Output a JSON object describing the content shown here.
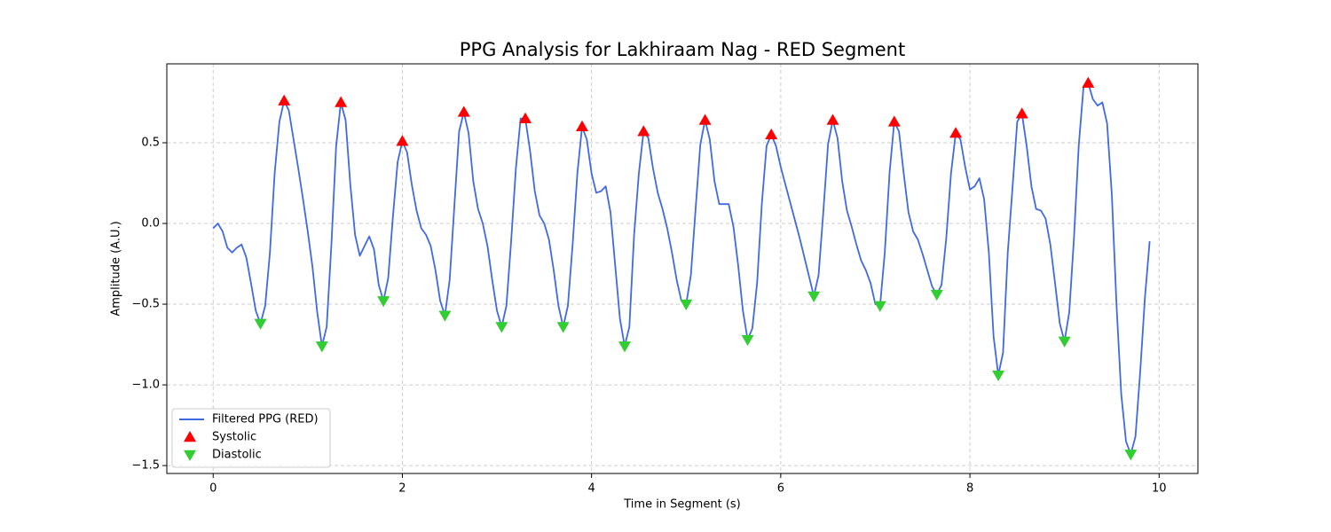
{
  "chart_data": {
    "type": "line",
    "title": "PPG Analysis for Lakhiraam Nag - RED Segment",
    "xlabel": "Time in Segment (s)",
    "ylabel": "Amplitude (A.U.)",
    "xlim": [
      -0.49,
      10.41
    ],
    "ylim": [
      -1.549,
      0.989
    ],
    "xticks": [
      0,
      2,
      4,
      6,
      8,
      10
    ],
    "yticks": [
      {
        "value": -1.5,
        "label": "−1.5"
      },
      {
        "value": -1.0,
        "label": "−1.0"
      },
      {
        "value": -0.5,
        "label": "−0.5"
      },
      {
        "value": 0,
        "label": "0.0"
      },
      0.5
    ],
    "grid": true,
    "legend": "lower left",
    "series": [
      {
        "name": "Filtered PPG (RED)",
        "type": "line",
        "color": "#4169e1",
        "x": [
          0,
          0.05,
          0.1,
          0.15,
          0.2,
          0.25,
          0.3,
          0.35,
          0.4,
          0.45,
          0.5,
          0.55,
          0.6,
          0.65,
          0.7,
          0.75,
          0.8,
          0.85,
          0.9,
          0.95,
          1,
          1.05,
          1.1,
          1.15,
          1.2,
          1.25,
          1.3,
          1.35,
          1.4,
          1.45,
          1.5,
          1.55,
          1.6,
          1.65,
          1.7,
          1.75,
          1.8,
          1.85,
          1.9,
          1.95,
          2,
          2.05,
          2.1,
          2.15,
          2.2,
          2.25,
          2.3,
          2.35,
          2.4,
          2.45,
          2.5,
          2.55,
          2.6,
          2.65,
          2.7,
          2.75,
          2.8,
          2.85,
          2.9,
          2.95,
          3,
          3.05,
          3.1,
          3.15,
          3.2,
          3.25,
          3.3,
          3.35,
          3.4,
          3.45,
          3.5,
          3.55,
          3.6,
          3.65,
          3.7,
          3.75,
          3.8,
          3.85,
          3.9,
          3.95,
          4,
          4.05,
          4.1,
          4.15,
          4.2,
          4.25,
          4.3,
          4.35,
          4.4,
          4.45,
          4.5,
          4.55,
          4.6,
          4.65,
          4.7,
          4.75,
          4.8,
          4.85,
          4.9,
          4.95,
          5,
          5.05,
          5.1,
          5.15,
          5.2,
          5.25,
          5.3,
          5.35,
          5.4,
          5.45,
          5.5,
          5.55,
          5.6,
          5.65,
          5.7,
          5.75,
          5.8,
          5.85,
          5.9,
          5.95,
          6,
          6.05,
          6.1,
          6.15,
          6.2,
          6.25,
          6.3,
          6.35,
          6.4,
          6.45,
          6.5,
          6.55,
          6.6,
          6.65,
          6.7,
          6.75,
          6.8,
          6.85,
          6.9,
          6.95,
          7,
          7.05,
          7.1,
          7.15,
          7.2,
          7.25,
          7.3,
          7.35,
          7.4,
          7.45,
          7.5,
          7.55,
          7.6,
          7.65,
          7.7,
          7.75,
          7.8,
          7.85,
          7.9,
          7.95,
          8,
          8.05,
          8.1,
          8.15,
          8.2,
          8.25,
          8.3,
          8.35,
          8.4,
          8.45,
          8.5,
          8.55,
          8.6,
          8.65,
          8.7,
          8.75,
          8.8,
          8.85,
          8.9,
          8.95,
          9,
          9.05,
          9.1,
          9.15,
          9.2,
          9.25,
          9.3,
          9.35,
          9.4,
          9.45,
          9.5,
          9.55,
          9.6,
          9.65,
          9.7,
          9.75,
          9.8,
          9.85,
          9.9
        ],
        "values": [
          -0.03,
          0.0,
          -0.05,
          -0.15,
          -0.18,
          -0.15,
          -0.13,
          -0.21,
          -0.37,
          -0.54,
          -0.62,
          -0.51,
          -0.18,
          0.31,
          0.63,
          0.76,
          0.7,
          0.52,
          0.34,
          0.15,
          -0.05,
          -0.27,
          -0.55,
          -0.76,
          -0.64,
          -0.13,
          0.48,
          0.75,
          0.64,
          0.24,
          -0.07,
          -0.2,
          -0.14,
          -0.08,
          -0.16,
          -0.38,
          -0.48,
          -0.34,
          0.04,
          0.38,
          0.51,
          0.44,
          0.24,
          0.08,
          -0.03,
          -0.07,
          -0.14,
          -0.29,
          -0.48,
          -0.57,
          -0.35,
          0.11,
          0.57,
          0.69,
          0.56,
          0.26,
          0.09,
          0.0,
          -0.14,
          -0.35,
          -0.54,
          -0.64,
          -0.51,
          -0.11,
          0.34,
          0.65,
          0.65,
          0.45,
          0.2,
          0.05,
          0.0,
          -0.1,
          -0.29,
          -0.51,
          -0.64,
          -0.51,
          -0.13,
          0.31,
          0.6,
          0.52,
          0.31,
          0.19,
          0.2,
          0.23,
          0.07,
          -0.26,
          -0.59,
          -0.76,
          -0.64,
          -0.07,
          0.31,
          0.57,
          0.53,
          0.34,
          0.19,
          0.09,
          -0.03,
          -0.18,
          -0.35,
          -0.48,
          -0.5,
          -0.32,
          0.09,
          0.49,
          0.64,
          0.52,
          0.26,
          0.12,
          0.12,
          0.12,
          -0.02,
          -0.26,
          -0.54,
          -0.72,
          -0.65,
          -0.37,
          0.12,
          0.48,
          0.55,
          0.48,
          0.35,
          0.24,
          0.13,
          0.02,
          -0.09,
          -0.21,
          -0.33,
          -0.45,
          -0.32,
          0.07,
          0.49,
          0.64,
          0.53,
          0.26,
          0.08,
          -0.02,
          -0.13,
          -0.23,
          -0.29,
          -0.37,
          -0.5,
          -0.51,
          -0.18,
          0.31,
          0.63,
          0.57,
          0.31,
          0.07,
          -0.05,
          -0.1,
          -0.19,
          -0.29,
          -0.39,
          -0.44,
          -0.38,
          -0.09,
          0.31,
          0.56,
          0.52,
          0.35,
          0.21,
          0.23,
          0.28,
          0.15,
          -0.18,
          -0.7,
          -0.94,
          -0.8,
          -0.18,
          0.22,
          0.63,
          0.68,
          0.48,
          0.23,
          0.09,
          0.08,
          0.03,
          -0.13,
          -0.37,
          -0.62,
          -0.73,
          -0.55,
          -0.09,
          0.48,
          0.84,
          0.87,
          0.77,
          0.73,
          0.75,
          0.62,
          0.18,
          -0.51,
          -1.06,
          -1.35,
          -1.43,
          -1.32,
          -0.92,
          -0.46,
          -0.11
        ]
      },
      {
        "name": "Systolic",
        "type": "scatter",
        "marker": "triangle-up",
        "color": "#ff0000",
        "x": [
          0.75,
          1.35,
          2.0,
          2.65,
          3.3,
          3.9,
          4.55,
          5.2,
          5.9,
          6.55,
          7.2,
          7.85,
          8.55,
          9.25
        ],
        "values": [
          0.76,
          0.75,
          0.51,
          0.69,
          0.65,
          0.6,
          0.57,
          0.64,
          0.55,
          0.64,
          0.63,
          0.56,
          0.68,
          0.87
        ]
      },
      {
        "name": "Diastolic",
        "type": "scatter",
        "marker": "triangle-down",
        "color": "#32cd32",
        "x": [
          0.5,
          1.15,
          1.8,
          2.45,
          3.05,
          3.7,
          4.35,
          5.0,
          5.65,
          6.35,
          7.05,
          7.65,
          8.3,
          9.0,
          9.7
        ],
        "values": [
          -0.62,
          -0.76,
          -0.48,
          -0.57,
          -0.64,
          -0.64,
          -0.76,
          -0.5,
          -0.72,
          -0.45,
          -0.51,
          -0.44,
          -0.94,
          -0.73,
          -1.43
        ]
      }
    ]
  }
}
